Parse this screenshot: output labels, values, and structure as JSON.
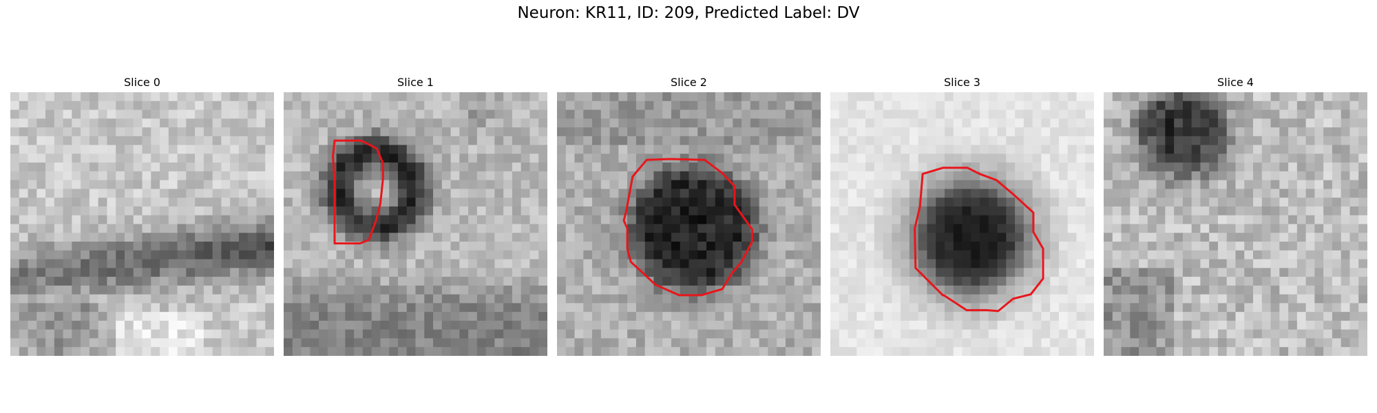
{
  "figure": {
    "title": "Neuron: KR11, ID: 209, Predicted Label: DV"
  },
  "panels": [
    {
      "title": "Slice 0"
    },
    {
      "title": "Slice 1"
    },
    {
      "title": "Slice 2"
    },
    {
      "title": "Slice 3"
    },
    {
      "title": "Slice 4"
    }
  ],
  "colors": {
    "background": "#ffffff",
    "contour": "#e8161b",
    "image_colormap": "grayscale"
  }
}
